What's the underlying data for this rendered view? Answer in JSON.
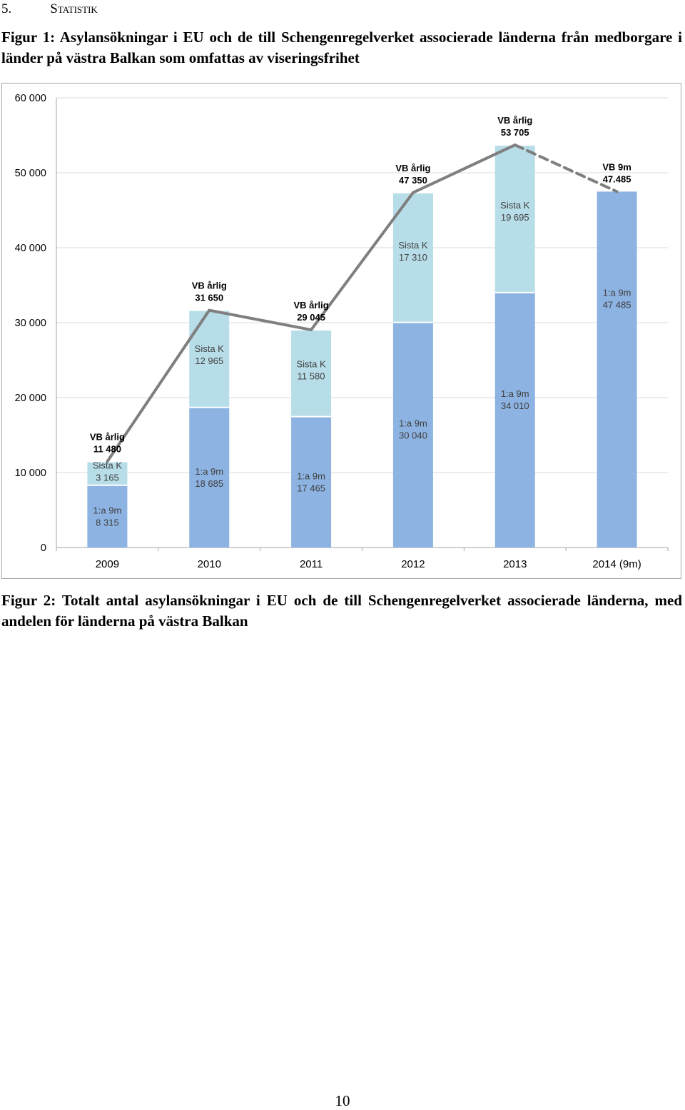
{
  "section": {
    "number": "5.",
    "title": "Statistik"
  },
  "fig1_caption": "Figur 1: Asylansökningar i EU och de till Schengenregelverket associerade länderna från medborgare i länder på västra Balkan som omfattas av viseringsfrihet",
  "fig2_caption": "Figur 2: Totalt antal asylansökningar i EU och de till Schengenregelverket associerade länderna, med andelen för länderna på västra Balkan",
  "page_number": "10",
  "chart_data": {
    "type": "bar",
    "stacked": true,
    "categories": [
      "2009",
      "2010",
      "2011",
      "2012",
      "2013",
      "2014 (9m)"
    ],
    "ylim": [
      0,
      60000
    ],
    "yticks": [
      0,
      10000,
      20000,
      30000,
      40000,
      50000,
      60000
    ],
    "ytick_labels": [
      "0",
      "10 000",
      "20 000",
      "30 000",
      "40 000",
      "50 000",
      "60 000"
    ],
    "grid": true,
    "colors": {
      "first9m": "#8db3e2",
      "lastQ": "#b7dde8",
      "line": "#7f7f7f",
      "grid": "#d9d9d9",
      "axis": "#a6a6a6"
    },
    "bar_series": [
      {
        "key": "first9m",
        "values": [
          8315,
          18685,
          17465,
          30040,
          34010,
          47485
        ],
        "labels": [
          [
            "1:a 9m",
            "8 315"
          ],
          [
            "1:a 9m",
            "18 685"
          ],
          [
            "1:a 9m",
            "17 465"
          ],
          [
            "1:a 9m",
            "30 040"
          ],
          [
            "1:a 9m",
            "34 010"
          ],
          [
            "1:a 9m",
            "47 485"
          ]
        ]
      },
      {
        "key": "lastQ",
        "values": [
          3165,
          12965,
          11580,
          17310,
          19695,
          0
        ],
        "labels": [
          [
            "Sista K",
            "3 165"
          ],
          [
            "Sista K",
            "12 965"
          ],
          [
            "Sista K",
            "11 580"
          ],
          [
            "Sista K",
            "17 310"
          ],
          [
            "Sista K",
            "19 695"
          ],
          null
        ]
      }
    ],
    "line_series": {
      "values": [
        11480,
        31650,
        29045,
        47350,
        53705,
        47485
      ],
      "dashed_last_segment": true,
      "labels": [
        [
          "VB årlig",
          "11 480"
        ],
        [
          "VB årlig",
          "31 650"
        ],
        [
          "VB årlig",
          "29 045"
        ],
        [
          "VB årlig",
          "47 350"
        ],
        [
          "VB årlig",
          "53 705"
        ],
        [
          "VB 9m",
          "47.485"
        ]
      ]
    }
  }
}
